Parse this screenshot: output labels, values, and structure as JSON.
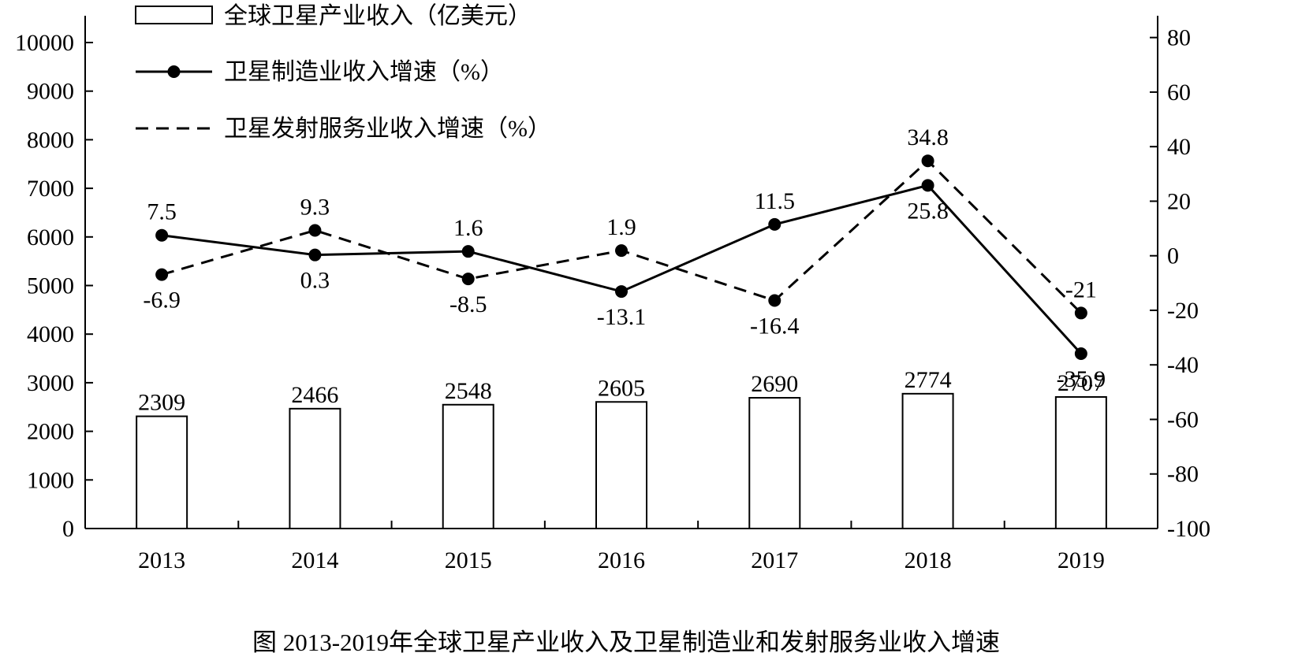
{
  "chart_data": {
    "type": "bar",
    "caption": "图  2013-2019年全球卫星产业收入及卫星制造业和发射服务业收入增速",
    "categories": [
      "2013",
      "2014",
      "2015",
      "2016",
      "2017",
      "2018",
      "2019"
    ],
    "bar_series": {
      "name": "全球卫星产业收入（亿美元）",
      "axis": "left",
      "values": [
        2309,
        2466,
        2548,
        2605,
        2690,
        2774,
        2707
      ],
      "labels": [
        "2309",
        "2466",
        "2548",
        "2605",
        "2690",
        "2774",
        "2707"
      ]
    },
    "line_series": [
      {
        "name": "卫星制造业收入增速（%）",
        "axis": "right",
        "style": "solid",
        "values": [
          7.5,
          0.3,
          1.6,
          -13.1,
          11.5,
          25.8,
          -35.9
        ],
        "labels": [
          "7.5",
          "0.3",
          "1.6",
          "-13.1",
          "11.5",
          "25.8",
          "-35.9"
        ]
      },
      {
        "name": "卫星发射服务业收入增速（%）",
        "axis": "right",
        "style": "dashed",
        "values": [
          -6.9,
          9.3,
          -8.5,
          1.9,
          -16.4,
          34.8,
          -21
        ],
        "labels": [
          "-6.9",
          "9.3",
          "-8.5",
          "1.9",
          "-16.4",
          "34.8",
          "-21"
        ]
      }
    ],
    "y_left": {
      "range": [
        0,
        10000
      ],
      "ticks": [
        "0",
        "1000",
        "2000",
        "3000",
        "4000",
        "5000",
        "6000",
        "7000",
        "8000",
        "9000",
        "10000"
      ]
    },
    "y_right": {
      "range": [
        -100,
        90
      ],
      "ticks": [
        "-100",
        "-80",
        "-60",
        "-40",
        "-20",
        "0",
        "20",
        "40",
        "60",
        "80"
      ]
    },
    "grid": false,
    "legend_position": "top-left",
    "colors": {
      "stroke": "#000000",
      "bar_fill": "#ffffff",
      "background": "#ffffff"
    }
  }
}
